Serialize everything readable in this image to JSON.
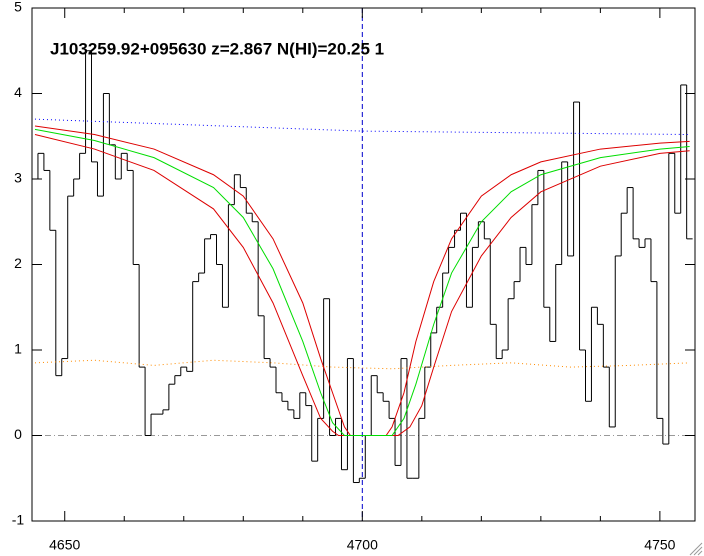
{
  "chart_data": {
    "type": "line",
    "title": "J103259.92+095630 z=2.867 N(HI)=20.25 1",
    "xlim": [
      4644.5,
      4755.9
    ],
    "ylim": [
      -1,
      5
    ],
    "xticks": [
      4650,
      4700,
      4750
    ],
    "xminorticks": [
      4660,
      4670,
      4680,
      4690,
      4710,
      4720,
      4730,
      4740
    ],
    "yticks": [
      -1,
      0,
      1,
      2,
      3,
      4,
      5
    ],
    "hline": 0,
    "vline": 4700,
    "series": [
      {
        "color": "#000000",
        "style": "step",
        "x": [
          4645,
          4646,
          4647,
          4648,
          4649,
          4650,
          4651,
          4652,
          4653,
          4654,
          4655,
          4656,
          4657,
          4658,
          4659,
          4660,
          4661,
          4662,
          4663,
          4664,
          4665,
          4666,
          4667,
          4668,
          4669,
          4670,
          4671,
          4672,
          4673,
          4674,
          4675,
          4676,
          4677,
          4678,
          4679,
          4680,
          4681,
          4682,
          4683,
          4684,
          4685,
          4686,
          4687,
          4688,
          4689,
          4690,
          4691,
          4692,
          4693,
          4694,
          4695,
          4696,
          4697,
          4698,
          4699,
          4700,
          4701,
          4702,
          4703,
          4704,
          4705,
          4706,
          4707,
          4708,
          4709,
          4710,
          4711,
          4712,
          4713,
          4714,
          4715,
          4716,
          4717,
          4718,
          4719,
          4720,
          4721,
          4722,
          4723,
          4724,
          4725,
          4726,
          4727,
          4728,
          4729,
          4730,
          4731,
          4732,
          4733,
          4734,
          4735,
          4736,
          4737,
          4738,
          4739,
          4740,
          4741,
          4742,
          4743,
          4744,
          4745,
          4746,
          4747,
          4748,
          4749,
          4750,
          4751,
          4752,
          4753,
          4754,
          4755
        ],
        "values": [
          3.0,
          3.3,
          3.1,
          2.4,
          0.7,
          0.9,
          2.8,
          3.0,
          3.3,
          4.5,
          3.2,
          2.8,
          4.0,
          3.4,
          3.0,
          3.3,
          3.1,
          2.0,
          0.8,
          0.0,
          0.25,
          0.25,
          0.3,
          0.6,
          0.7,
          0.8,
          0.75,
          1.8,
          1.9,
          2.3,
          2.35,
          2.0,
          1.5,
          2.7,
          3.05,
          2.9,
          2.6,
          2.5,
          1.4,
          0.9,
          0.8,
          0.5,
          0.4,
          0.3,
          0.2,
          0.5,
          0.35,
          -0.3,
          0.2,
          1.6,
          0.0,
          0.2,
          -0.4,
          0.9,
          -0.55,
          -0.5,
          0.0,
          0.7,
          0.5,
          0.4,
          0.2,
          -0.35,
          0.9,
          -0.5,
          -0.5,
          0.2,
          0.8,
          1.2,
          1.5,
          1.9,
          2.2,
          2.4,
          2.6,
          1.5,
          2.2,
          2.5,
          2.3,
          1.3,
          0.9,
          1.0,
          1.6,
          1.8,
          2.2,
          2.0,
          2.7,
          3.1,
          1.5,
          1.1,
          2.0,
          3.2,
          2.1,
          3.9,
          1.0,
          0.4,
          1.5,
          1.3,
          0.8,
          0.1,
          2.1,
          2.6,
          2.9,
          2.3,
          2.2,
          2.3,
          1.8,
          0.2,
          -0.1,
          3.3,
          2.6,
          4.1,
          2.3
        ]
      },
      {
        "color": "#0000ff",
        "style": "dotted",
        "x": [
          4645,
          4700,
          4755
        ],
        "values": [
          3.7,
          3.56,
          3.52
        ]
      },
      {
        "color": "#ff8c00",
        "style": "dotted",
        "x": [
          4645,
          4655,
          4665,
          4675,
          4685,
          4695,
          4705,
          4715,
          4725,
          4735,
          4745,
          4755
        ],
        "values": [
          0.85,
          0.88,
          0.82,
          0.88,
          0.85,
          0.8,
          0.78,
          0.82,
          0.85,
          0.8,
          0.82,
          0.85
        ]
      },
      {
        "color": "#dd0000",
        "style": "solid",
        "x": [
          4645,
          4655,
          4665,
          4675,
          4680,
          4685,
          4690,
          4693,
          4695,
          4697,
          4698,
          4704,
          4705,
          4707,
          4709,
          4712,
          4715,
          4720,
          4725,
          4730,
          4740,
          4750,
          4755
        ],
        "values": [
          3.62,
          3.52,
          3.35,
          3.05,
          2.8,
          2.3,
          1.55,
          0.9,
          0.5,
          0.1,
          0,
          0,
          0.1,
          0.5,
          1.1,
          1.8,
          2.3,
          2.8,
          3.05,
          3.2,
          3.35,
          3.42,
          3.44
        ]
      },
      {
        "color": "#dd0000",
        "style": "solid",
        "x": [
          4645,
          4655,
          4665,
          4675,
          4680,
          4685,
          4690,
          4693,
          4695,
          4696,
          4706,
          4708,
          4710,
          4712,
          4715,
          4720,
          4725,
          4730,
          4740,
          4750,
          4755
        ],
        "values": [
          3.52,
          3.35,
          3.1,
          2.65,
          2.2,
          1.55,
          0.7,
          0.2,
          0.05,
          0,
          0,
          0.1,
          0.35,
          0.8,
          1.45,
          2.1,
          2.55,
          2.85,
          3.15,
          3.3,
          3.33
        ]
      },
      {
        "color": "#00dd00",
        "style": "solid",
        "x": [
          4645,
          4655,
          4665,
          4675,
          4680,
          4685,
          4690,
          4693,
          4695,
          4697,
          4705,
          4707,
          4709,
          4712,
          4715,
          4720,
          4725,
          4730,
          4740,
          4750,
          4755
        ],
        "values": [
          3.58,
          3.45,
          3.25,
          2.9,
          2.55,
          1.95,
          1.1,
          0.5,
          0.15,
          0,
          0,
          0.2,
          0.6,
          1.3,
          1.9,
          2.5,
          2.85,
          3.05,
          3.25,
          3.35,
          3.38
        ]
      }
    ]
  }
}
